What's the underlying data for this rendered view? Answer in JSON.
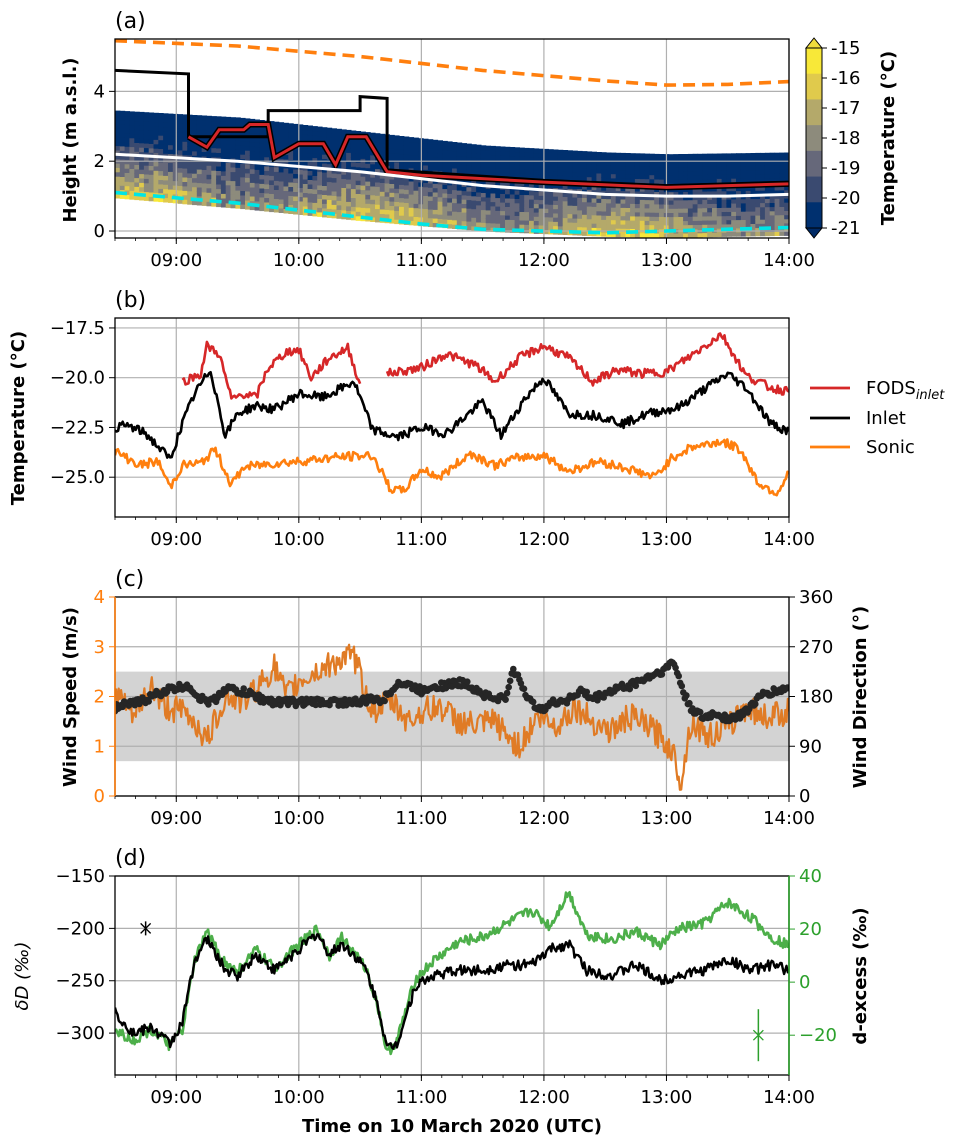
{
  "chart_data": [
    {
      "panel": "(a)",
      "type": "heatmap",
      "ylabel": "Height (m a.s.l.)",
      "ylim": [
        -0.2,
        5.5
      ],
      "yticks": [
        0,
        2,
        4
      ],
      "xlim": [
        "08:30",
        "14:00"
      ],
      "xticks": [
        "09:00",
        "10:00",
        "11:00",
        "12:00",
        "13:00",
        "14:00"
      ],
      "colorbar": {
        "label": "Temperature (°C)",
        "ticks": [
          "-15",
          "-16",
          "-17",
          "-18",
          "-19",
          "-20",
          "-21"
        ],
        "levels": [
          -21,
          -20,
          -19,
          -18,
          -17,
          -16,
          -15
        ],
        "colors": [
          "#00306f",
          "#3a4a70",
          "#66687a",
          "#8d8b7c",
          "#b4a96a",
          "#e0ca4c",
          "#f8e838"
        ]
      },
      "series": [
        {
          "color": "#ff7f0e",
          "style": "dashed",
          "x": [
            8.5,
            9.5,
            10.5,
            11.5,
            12.5,
            13.0,
            13.5,
            14.0
          ],
          "y": [
            5.45,
            5.3,
            5.0,
            4.6,
            4.3,
            4.18,
            4.2,
            4.28
          ]
        },
        {
          "color": "#000000",
          "style": "solid",
          "x": [
            8.5,
            9.1,
            9.1,
            9.75,
            9.75,
            10.5,
            10.5,
            10.72,
            10.72,
            12.0,
            13.0,
            14.0
          ],
          "y": [
            4.6,
            4.5,
            2.7,
            2.7,
            3.45,
            3.45,
            3.85,
            3.8,
            1.75,
            1.45,
            1.3,
            1.4
          ]
        },
        {
          "color": "#d62728",
          "style": "solid",
          "x": [
            9.1,
            9.25,
            9.35,
            9.55,
            9.6,
            9.75,
            9.8,
            10.0,
            10.2,
            10.3,
            10.4,
            10.55,
            10.72,
            11.0,
            12.0,
            13.0,
            14.0
          ],
          "y": [
            2.7,
            2.4,
            2.9,
            2.9,
            3.05,
            3.05,
            2.1,
            2.5,
            2.5,
            1.9,
            2.7,
            2.7,
            1.7,
            1.6,
            1.4,
            1.25,
            1.35
          ]
        },
        {
          "color": "#ffffff",
          "style": "solid",
          "x": [
            8.5,
            9.5,
            10.5,
            11.5,
            12.5,
            13.0,
            13.5,
            14.0
          ],
          "y": [
            2.2,
            2.0,
            1.7,
            1.3,
            1.05,
            1.0,
            1.0,
            1.05
          ]
        },
        {
          "color": "#00e5e5",
          "style": "dashed",
          "x": [
            8.5,
            9.5,
            10.5,
            11.0,
            11.5,
            12.5,
            13.0,
            14.0
          ],
          "y": [
            1.1,
            0.8,
            0.4,
            0.2,
            0.05,
            -0.05,
            0.0,
            0.1
          ]
        }
      ]
    },
    {
      "panel": "(b)",
      "type": "line",
      "ylabel": "Temperature (°C)",
      "ylim": [
        -27,
        -17
      ],
      "yticks": [
        "−17.5",
        "−20.0",
        "−22.5",
        "−25.0"
      ],
      "yticks_values": [
        -17.5,
        -20.0,
        -22.5,
        -25.0
      ],
      "xlim": [
        "08:30",
        "14:00"
      ],
      "xticks": [
        "09:00",
        "10:00",
        "11:00",
        "12:00",
        "13:00",
        "14:00"
      ],
      "legend": {
        "placement": "right",
        "items": [
          "FODS",
          "Inlet",
          "Sonic"
        ],
        "fods_subscript": "inlet"
      },
      "series": [
        {
          "name": "FODS_inlet",
          "color": "#d62728",
          "x": [
            9.05,
            9.2,
            9.25,
            9.35,
            9.45,
            9.55,
            9.65,
            9.75,
            9.9,
            10.0,
            10.1,
            10.25,
            10.4,
            10.5
          ],
          "y": [
            -20.2,
            -19.8,
            -18.4,
            -18.8,
            -21.1,
            -20.8,
            -21.0,
            -19.5,
            -18.7,
            -18.6,
            -20.0,
            -19.0,
            -18.5,
            -20.3
          ],
          "segment_break_after": 10.5
        },
        {
          "name": "FODS_inlet (cont.)",
          "color": "#d62728",
          "x": [
            10.72,
            11.0,
            11.2,
            11.45,
            11.6,
            11.8,
            12.0,
            12.2,
            12.4,
            12.6,
            12.8,
            13.0,
            13.2,
            13.45,
            13.65,
            13.85,
            14.0
          ],
          "y": [
            -19.8,
            -19.5,
            -18.8,
            -19.4,
            -20.2,
            -19.0,
            -18.4,
            -19.0,
            -20.2,
            -19.6,
            -19.8,
            -19.7,
            -18.9,
            -17.8,
            -19.9,
            -20.5,
            -20.7
          ]
        },
        {
          "name": "Inlet",
          "color": "#000000",
          "x": [
            8.5,
            8.6,
            8.75,
            8.95,
            9.05,
            9.15,
            9.28,
            9.4,
            9.5,
            9.65,
            9.8,
            10.0,
            10.2,
            10.45,
            10.6,
            10.8,
            11.0,
            11.2,
            11.5,
            11.65,
            11.85,
            12.0,
            12.2,
            12.45,
            12.65,
            12.85,
            13.1,
            13.3,
            13.5,
            13.65,
            13.85,
            14.0
          ],
          "y": [
            -22.5,
            -22.4,
            -22.8,
            -24.1,
            -22.3,
            -20.8,
            -19.6,
            -22.9,
            -21.8,
            -21.4,
            -21.6,
            -20.8,
            -21.0,
            -20.2,
            -22.6,
            -23.0,
            -22.5,
            -22.8,
            -21.2,
            -22.9,
            -21.0,
            -20.0,
            -21.8,
            -21.9,
            -22.3,
            -21.8,
            -21.5,
            -20.6,
            -19.8,
            -20.5,
            -22.3,
            -22.7
          ]
        },
        {
          "name": "Sonic",
          "color": "#ff7f0e",
          "x": [
            8.5,
            8.7,
            8.85,
            8.95,
            9.05,
            9.2,
            9.32,
            9.45,
            9.55,
            9.8,
            10.0,
            10.3,
            10.6,
            10.75,
            10.85,
            11.0,
            11.15,
            11.4,
            11.6,
            11.8,
            12.0,
            12.2,
            12.45,
            12.7,
            12.9,
            13.05,
            13.2,
            13.45,
            13.6,
            13.75,
            13.9,
            14.0
          ],
          "y": [
            -23.7,
            -24.4,
            -24.2,
            -25.5,
            -24.4,
            -24.3,
            -23.6,
            -25.4,
            -24.5,
            -24.3,
            -24.2,
            -24.0,
            -23.9,
            -25.6,
            -25.7,
            -24.6,
            -25.0,
            -23.8,
            -24.4,
            -24.0,
            -23.9,
            -24.7,
            -24.2,
            -24.6,
            -25.0,
            -24.0,
            -23.5,
            -23.2,
            -23.6,
            -25.3,
            -25.8,
            -24.8
          ]
        }
      ]
    },
    {
      "panel": "(c)",
      "type": "line",
      "ylabel": "Wind Speed (m/s)",
      "y2label": "Wind Direction (°)",
      "ylim": [
        0,
        4
      ],
      "y2lim": [
        0,
        360
      ],
      "yticks": [
        "0",
        "1",
        "2",
        "3",
        "4"
      ],
      "y2ticks": [
        "0",
        "90",
        "180",
        "270",
        "360"
      ],
      "xlim": [
        "08:30",
        "14:00"
      ],
      "xticks": [
        "09:00",
        "10:00",
        "11:00",
        "12:00",
        "13:00",
        "14:00"
      ],
      "band": {
        "ymin": 0.7,
        "ymax": 2.5,
        "color": "#d3d3d3"
      },
      "series": [
        {
          "name": "Wind speed",
          "color": "#e07b25",
          "x": [
            8.5,
            8.65,
            8.8,
            8.9,
            9.05,
            9.15,
            9.25,
            9.4,
            9.55,
            9.7,
            9.8,
            9.9,
            10.0,
            10.15,
            10.3,
            10.45,
            10.6,
            10.75,
            10.9,
            11.0,
            11.15,
            11.3,
            11.45,
            11.6,
            11.7,
            11.8,
            11.95,
            12.1,
            12.25,
            12.4,
            12.55,
            12.7,
            12.85,
            12.95,
            13.05,
            13.12,
            13.2,
            13.35,
            13.5,
            13.65,
            13.8,
            14.0
          ],
          "y": [
            2.1,
            1.6,
            2.2,
            1.8,
            1.7,
            1.5,
            1.1,
            2.0,
            1.9,
            2.3,
            2.6,
            2.0,
            2.3,
            2.5,
            2.7,
            2.8,
            1.7,
            1.9,
            1.5,
            1.7,
            1.8,
            1.5,
            1.4,
            1.5,
            1.2,
            1.0,
            1.6,
            1.4,
            1.8,
            1.5,
            1.3,
            1.6,
            1.4,
            1.2,
            0.9,
            0.3,
            1.5,
            1.2,
            1.4,
            1.8,
            1.6,
            1.7
          ]
        },
        {
          "name": "Wind direction",
          "axis": "right",
          "color": "#262626",
          "marker": "dot",
          "x": [
            8.5,
            8.6,
            8.7,
            8.8,
            8.9,
            9.0,
            9.1,
            9.2,
            9.3,
            9.4,
            9.5,
            9.6,
            9.7,
            9.8,
            9.9,
            10.0,
            10.1,
            10.2,
            10.3,
            10.4,
            10.5,
            10.6,
            10.7,
            10.8,
            10.9,
            11.0,
            11.1,
            11.2,
            11.3,
            11.4,
            11.5,
            11.6,
            11.7,
            11.75,
            11.8,
            11.9,
            12.0,
            12.1,
            12.2,
            12.3,
            12.4,
            12.5,
            12.6,
            12.7,
            12.8,
            12.9,
            13.0,
            13.05,
            13.1,
            13.15,
            13.2,
            13.3,
            13.4,
            13.5,
            13.6,
            13.7,
            13.8,
            13.9,
            14.0
          ],
          "y": [
            160,
            165,
            170,
            180,
            190,
            195,
            200,
            175,
            170,
            195,
            190,
            185,
            175,
            170,
            170,
            170,
            170,
            170,
            170,
            170,
            170,
            175,
            175,
            205,
            200,
            190,
            200,
            200,
            205,
            200,
            185,
            175,
            180,
            230,
            210,
            165,
            160,
            170,
            175,
            190,
            175,
            185,
            195,
            200,
            210,
            220,
            230,
            245,
            215,
            180,
            160,
            140,
            150,
            140,
            145,
            165,
            185,
            190,
            195
          ]
        }
      ]
    },
    {
      "panel": "(d)",
      "type": "line",
      "ylabel": "δD (‰)",
      "y2label": "d-excess (‰)",
      "xlabel": "Time on 10 March 2020 (UTC)",
      "ylim": [
        -340,
        -150
      ],
      "y2lim": [
        -35,
        40
      ],
      "yticks": [
        "−150",
        "−200",
        "−250",
        "−300"
      ],
      "y2ticks": [
        "40",
        "20",
        "0",
        "−20"
      ],
      "xlim": [
        "08:30",
        "14:00"
      ],
      "xticks": [
        "09:00",
        "10:00",
        "11:00",
        "12:00",
        "13:00",
        "14:00"
      ],
      "series": [
        {
          "name": "δD",
          "color": "#000000",
          "x": [
            8.5,
            8.65,
            8.8,
            8.95,
            9.05,
            9.15,
            9.25,
            9.4,
            9.5,
            9.65,
            9.8,
            9.95,
            10.05,
            10.15,
            10.25,
            10.35,
            10.45,
            10.55,
            10.65,
            10.72,
            10.8,
            10.95,
            11.1,
            11.3,
            11.5,
            11.7,
            11.9,
            12.05,
            12.2,
            12.35,
            12.55,
            12.75,
            12.95,
            13.1,
            13.3,
            13.5,
            13.7,
            13.85,
            14.0
          ],
          "y": [
            -280,
            -300,
            -295,
            -310,
            -290,
            -230,
            -210,
            -240,
            -245,
            -225,
            -240,
            -225,
            -215,
            -205,
            -225,
            -215,
            -225,
            -240,
            -275,
            -315,
            -310,
            -255,
            -245,
            -240,
            -240,
            -235,
            -235,
            -220,
            -215,
            -240,
            -245,
            -235,
            -250,
            -245,
            -240,
            -230,
            -240,
            -235,
            -240
          ]
        },
        {
          "name": "d-excess",
          "axis": "right",
          "color": "#4daf4a",
          "x": [
            8.5,
            8.65,
            8.8,
            8.95,
            9.05,
            9.15,
            9.25,
            9.4,
            9.5,
            9.65,
            9.8,
            9.95,
            10.05,
            10.15,
            10.25,
            10.35,
            10.45,
            10.55,
            10.65,
            10.72,
            10.8,
            10.95,
            11.1,
            11.3,
            11.5,
            11.7,
            11.9,
            12.05,
            12.2,
            12.35,
            12.55,
            12.75,
            12.95,
            13.1,
            13.3,
            13.5,
            13.7,
            13.85,
            14.0
          ],
          "y": [
            -18,
            -22,
            -18,
            -24,
            -18,
            8,
            19,
            7,
            4,
            12,
            5,
            12,
            16,
            20,
            10,
            17,
            11,
            5,
            -10,
            -27,
            -22,
            1,
            8,
            15,
            17,
            22,
            27,
            21,
            34,
            18,
            16,
            19,
            14,
            20,
            22,
            30,
            24,
            17,
            14
          ]
        }
      ],
      "errorbars": [
        {
          "axis": "left",
          "x": 8.75,
          "y": -200,
          "color": "#000000"
        },
        {
          "axis": "right",
          "x": 13.75,
          "y": -20,
          "color": "#2ca02c"
        }
      ]
    }
  ]
}
